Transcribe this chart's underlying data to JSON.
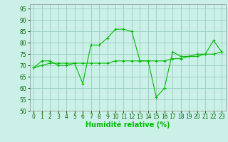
{
  "x_main": [
    0,
    1,
    2,
    3,
    4,
    5,
    6,
    7,
    8,
    9,
    10,
    11,
    12,
    13,
    14,
    15,
    16,
    17,
    18,
    19,
    20,
    21,
    22,
    23
  ],
  "y_main": [
    69,
    72,
    72,
    70,
    70,
    71,
    62,
    79,
    79,
    82,
    86,
    86,
    85,
    72,
    72,
    56,
    60,
    76,
    74,
    74,
    75,
    75,
    81,
    76
  ],
  "x_trend": [
    0,
    1,
    2,
    3,
    4,
    5,
    6,
    7,
    8,
    9,
    10,
    11,
    12,
    13,
    14,
    15,
    16,
    17,
    18,
    19,
    20,
    21,
    22,
    23
  ],
  "y_trend": [
    69,
    70,
    71,
    71,
    71,
    71,
    71,
    71,
    71,
    71,
    72,
    72,
    72,
    72,
    72,
    72,
    72,
    73,
    73,
    74,
    74,
    75,
    75,
    76
  ],
  "line_color": "#00BB00",
  "bg_color": "#CBF0E8",
  "grid_color": "#99CCBB",
  "xlabel": "Humidité relative (%)",
  "ylim": [
    50,
    97
  ],
  "yticks": [
    50,
    55,
    60,
    65,
    70,
    75,
    80,
    85,
    90,
    95
  ],
  "xlim": [
    -0.5,
    23.5
  ],
  "xticks": [
    0,
    1,
    2,
    3,
    4,
    5,
    6,
    7,
    8,
    9,
    10,
    11,
    12,
    13,
    14,
    15,
    16,
    17,
    18,
    19,
    20,
    21,
    22,
    23
  ],
  "label_fontsize": 7,
  "tick_fontsize": 5.5
}
